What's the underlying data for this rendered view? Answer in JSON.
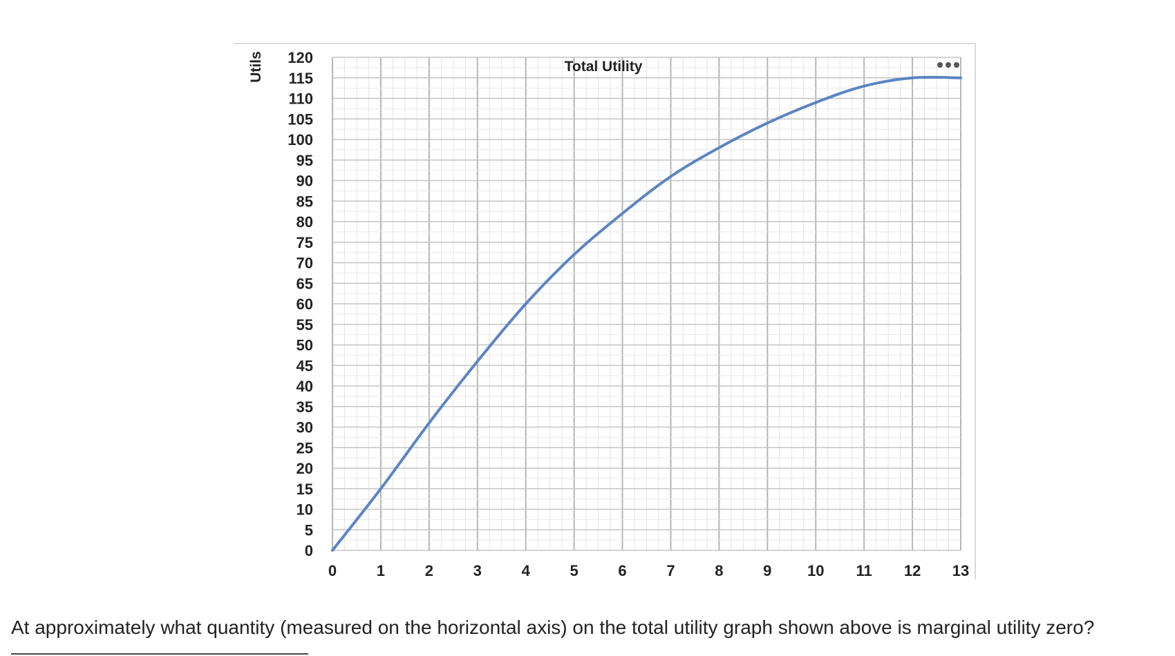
{
  "chart_data": {
    "type": "line",
    "title": "Total Utility",
    "xlabel": "",
    "ylabel": "Utils",
    "xlim": [
      0,
      13
    ],
    "ylim": [
      0,
      120
    ],
    "x_ticks": [
      "0",
      "1",
      "2",
      "3",
      "4",
      "5",
      "6",
      "7",
      "8",
      "9",
      "10",
      "11",
      "12",
      "13"
    ],
    "y_ticks": [
      "0",
      "5",
      "10",
      "15",
      "20",
      "25",
      "30",
      "35",
      "40",
      "45",
      "50",
      "55",
      "60",
      "65",
      "70",
      "75",
      "80",
      "85",
      "90",
      "95",
      "100",
      "105",
      "110",
      "115",
      "120"
    ],
    "grid": true,
    "series": [
      {
        "x": [
          0,
          1,
          2,
          3,
          4,
          5,
          6,
          7,
          8,
          9,
          10,
          11,
          12,
          13
        ],
        "values": [
          0,
          15,
          31,
          46,
          60,
          72,
          82,
          91,
          98,
          104,
          109,
          113,
          115,
          115
        ],
        "color": "#5b84c4"
      }
    ]
  },
  "menu": {
    "more_icon": "more-horizontal-icon"
  },
  "question": {
    "text": "At approximately what quantity (measured on the horizontal axis) on the total utility graph shown above is marginal utility zero?"
  }
}
